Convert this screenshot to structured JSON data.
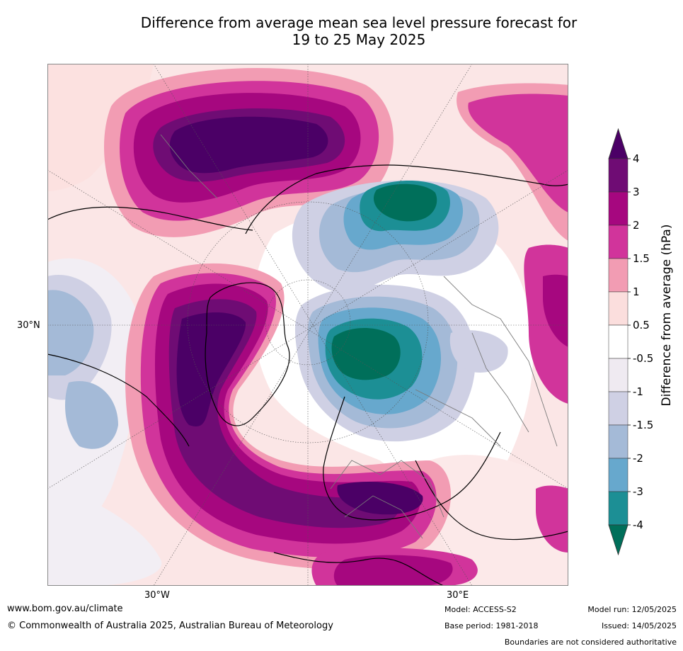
{
  "title": {
    "line1": "Difference from average mean sea level pressure forecast for",
    "line2": "19 to 25 May 2025"
  },
  "map": {
    "lat_label": "30°N",
    "lon_labels": [
      "30°W",
      "30°E"
    ]
  },
  "colorbar": {
    "label": "Difference from average (hPa)",
    "ticks": [
      "4",
      "3",
      "2",
      "1.5",
      "1",
      "0.5",
      "-0.5",
      "-1",
      "-1.5",
      "-2",
      "-3",
      "-4"
    ],
    "colors": [
      "#4b0066",
      "#6f0c74",
      "#a6077f",
      "#d1349b",
      "#f29cb3",
      "#fbdedd",
      "#ffffff",
      "#efeaf1",
      "#cfd0e4",
      "#a4bad7",
      "#67a8cd",
      "#1c8f95",
      "#006f5a"
    ]
  },
  "footer": {
    "url": "www.bom.gov.au/climate",
    "copyright": "© Commonwealth of Australia 2025, Australian Bureau of Meteorology",
    "model": "Model: ACCESS-S2",
    "base_period": "Base period: 1981-2018",
    "model_run": "Model run: 12/05/2025",
    "issued": "Issued: 14/05/2025",
    "disclaimer": "Boundaries are not considered authoritative"
  }
}
